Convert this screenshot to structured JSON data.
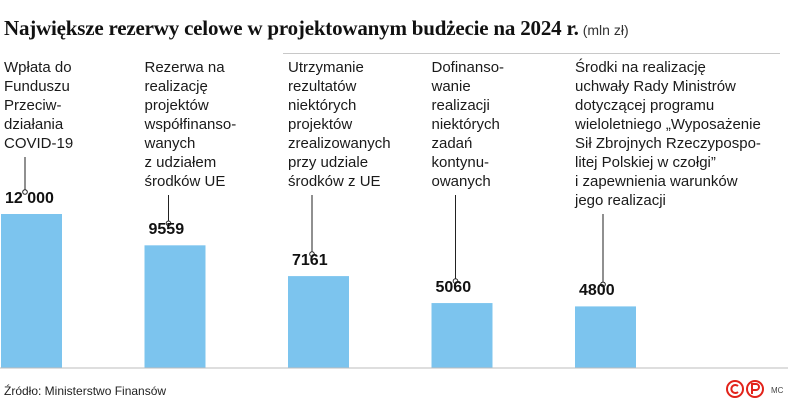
{
  "title": "Największe rezerwy celowe w projektowanym budżecie na 2024 r.",
  "unit": "(mln zł)",
  "chart_data": {
    "type": "bar",
    "categories": [
      [
        "Wpłata do",
        "Funduszu",
        "Przeciw-",
        "działania",
        "COVID-19"
      ],
      [
        "Rezerwa na",
        "realizację",
        "projektów",
        "współfinanso-",
        "wanych",
        "z udziałem",
        "środków UE"
      ],
      [
        "Utrzymanie",
        "rezultatów",
        "niektórych",
        "projektów",
        "zrealizowanych",
        "przy udziale",
        "środków z UE"
      ],
      [
        "Dofinanso-",
        "wanie",
        "realizacji",
        "niektórych",
        "zadań",
        "kontynu-",
        "owanych"
      ],
      [
        "Środki na realizację",
        "uchwały Rady Ministrów",
        "dotyczącej programu",
        "wieloletniego „Wyposażenie",
        "Sił Zbrojnych Rzeczypospo-",
        "litej Polskiej w czołgi”",
        "i zapewnienia warunków",
        "jego realizacji"
      ]
    ],
    "values": [
      12000,
      9559,
      7161,
      5060,
      4800
    ],
    "value_labels": [
      "12 000",
      "9559",
      "7161",
      "5060",
      "4800"
    ],
    "ylim": [
      0,
      12000
    ],
    "bar_color": "#7cc4ee"
  },
  "footer": {
    "source": "Źródło: Ministerstwo Finansów",
    "credit": "MC",
    "logo_color": "#e2231a"
  }
}
